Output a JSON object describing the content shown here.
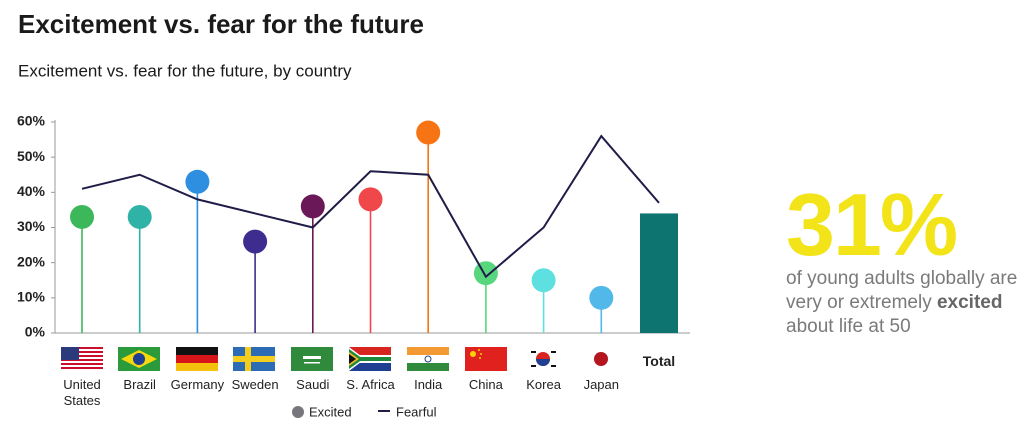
{
  "chart_data": {
    "type": "lollipop-line",
    "title": "Excitement vs. fear for the future",
    "subtitle": "Excitement vs. fear for the future, by country",
    "categories": [
      "United States",
      "Brazil",
      "Germany",
      "Sweden",
      "Saudi",
      "S. Africa",
      "India",
      "China",
      "Korea",
      "Japan",
      "Total"
    ],
    "total_style": "bar",
    "series": [
      {
        "name": "Excited",
        "color": "#77767d",
        "colors": [
          "#3cb85a",
          "#2fb3a6",
          "#2e8fe0",
          "#3e2d8f",
          "#6b1858",
          "#f0474a",
          "#f77414",
          "#57d67e",
          "#5fe0e0",
          "#52b8ea",
          "#0e7470"
        ],
        "values": [
          33,
          33,
          43,
          26,
          36,
          38,
          57,
          17,
          15,
          10,
          34
        ]
      },
      {
        "name": "Fearful",
        "color": "#1f1c47",
        "values": [
          41,
          45,
          38,
          34,
          30,
          46,
          45,
          16,
          30,
          56,
          37
        ]
      }
    ],
    "ylim": [
      0,
      60
    ],
    "yticks": [
      {
        "value": 0,
        "label": "0%"
      },
      {
        "value": 10,
        "label": "10%"
      },
      {
        "value": 20,
        "label": "20%"
      },
      {
        "value": 30,
        "label": "30%"
      },
      {
        "value": 40,
        "label": "40%"
      },
      {
        "value": 50,
        "label": "50%"
      },
      {
        "value": 60,
        "label": "60%"
      }
    ],
    "legend": "bottom"
  },
  "callout": {
    "headline": "31%",
    "text_before": "of young adults globally are very or extremely",
    "bold": "excited",
    "text_after": "about life at 50"
  }
}
